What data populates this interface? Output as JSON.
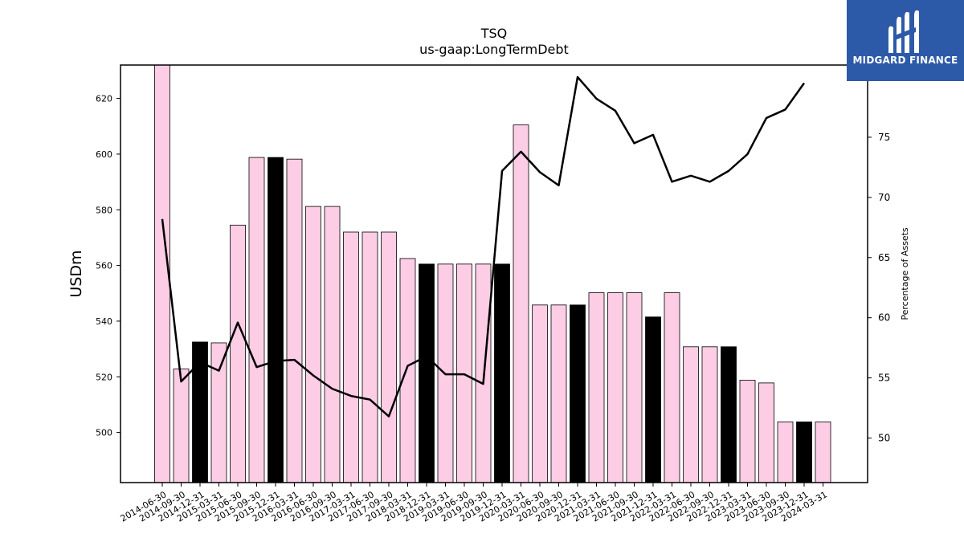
{
  "chart_data": {
    "type": "bar",
    "title": "TSQ",
    "subtitle": "us-gaap:LongTermDebt",
    "ylabel": "USDm",
    "y2label": "Percentage of Assets",
    "ylim": [
      482,
      632
    ],
    "y2lim": [
      46.3,
      81
    ],
    "yticks": [
      500,
      520,
      540,
      560,
      580,
      600,
      620
    ],
    "y2ticks": [
      50,
      55,
      60,
      65,
      70,
      75
    ],
    "categories": [
      "2014-06-30",
      "2014-09-30",
      "2014-12-31",
      "2015-03-31",
      "2015-06-30",
      "2015-09-30",
      "2015-12-31",
      "2016-03-31",
      "2016-06-30",
      "2016-09-30",
      "2017-03-31",
      "2017-06-30",
      "2017-09-30",
      "2018-03-31",
      "2018-12-31",
      "2019-03-31",
      "2019-06-30",
      "2019-09-30",
      "2019-12-31",
      "2020-03-31",
      "2020-06-30",
      "2020-09-30",
      "2020-12-31",
      "2021-03-31",
      "2021-06-30",
      "2021-09-30",
      "2021-12-31",
      "2022-03-31",
      "2022-06-30",
      "2022-09-30",
      "2022-12-31",
      "2023-03-31",
      "2023-06-30",
      "2023-09-30",
      "2023-12-31",
      "2024-03-31"
    ],
    "series": [
      {
        "kind": "bar",
        "values": [
          632,
          522.8,
          532.5,
          532.2,
          574.5,
          598.8,
          598.8,
          598.2,
          581.2,
          581.2,
          572,
          572,
          572,
          562.5,
          560.5,
          560.5,
          560.5,
          560.5,
          560.5,
          610.5,
          545.8,
          545.8,
          545.8,
          550.2,
          550.2,
          550.2,
          541.5,
          550.2,
          530.8,
          530.8,
          530.8,
          518.8,
          517.8,
          503.8,
          503.8,
          503.8
        ],
        "highlight": [
          false,
          false,
          true,
          false,
          false,
          false,
          true,
          false,
          false,
          false,
          false,
          false,
          false,
          false,
          true,
          false,
          false,
          false,
          true,
          false,
          false,
          false,
          true,
          false,
          false,
          false,
          true,
          false,
          false,
          false,
          true,
          false,
          false,
          false,
          true,
          false
        ],
        "color": "#fccde5",
        "highlight_color": "#000000"
      },
      {
        "kind": "line",
        "axis": "right",
        "values": [
          68.2,
          54.7,
          56.3,
          55.6,
          59.6,
          55.9,
          56.4,
          56.5,
          55.2,
          54.1,
          53.5,
          53.2,
          51.8,
          56.0,
          56.8,
          55.3,
          55.3,
          54.5,
          72.2,
          73.8,
          72.1,
          71.0,
          80.0,
          78.2,
          77.2,
          74.5,
          75.2,
          71.3,
          71.8,
          71.3,
          72.2,
          73.6,
          76.6,
          77.3,
          79.5,
          null
        ],
        "color": "#000000"
      }
    ],
    "grid": false,
    "legend": "none"
  },
  "logo": {
    "text": "MIDGARD FINANCE"
  }
}
